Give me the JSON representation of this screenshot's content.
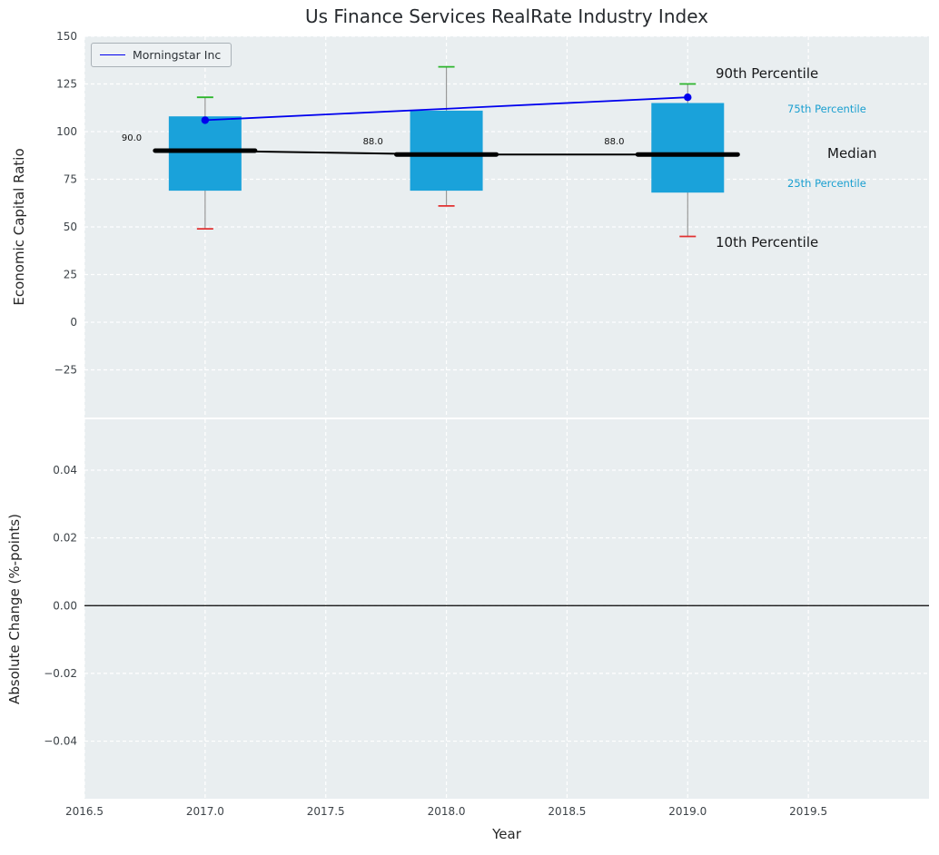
{
  "colors": {
    "box_fill": "#1aa2da",
    "median": "#000000",
    "whisker": "#999999",
    "cap_top": "#2cb52c",
    "cap_bottom": "#e23131",
    "company_line": "#0000ee",
    "percentile_label": "#1a9fd0",
    "plot_bg": "#e9eef0",
    "grid": "#ffffff",
    "tick_label": "#3d4348"
  },
  "chart_data": [
    {
      "type": "box",
      "panel": "top",
      "title": "Us Finance Services RealRate Industry Index",
      "ylabel": "Economic Capital Ratio",
      "xlim": [
        2016.5,
        2020.0
      ],
      "ylim": [
        -50,
        150
      ],
      "yticks": [
        150,
        125,
        100,
        75,
        50,
        25,
        0,
        -25
      ],
      "ytick_labels": [
        "150",
        "125",
        "100",
        "75",
        "50",
        "25",
        "0",
        "−25"
      ],
      "grid": true,
      "legend_position": "upper left",
      "categories": [
        2017,
        2018,
        2019
      ],
      "boxes": [
        {
          "x": 2017,
          "p10": 49,
          "p25": 69,
          "median": 90.0,
          "p75": 108,
          "p90": 118,
          "median_label": "90.0"
        },
        {
          "x": 2018,
          "p10": 61,
          "p25": 69,
          "median": 88.0,
          "p75": 111,
          "p90": 134,
          "median_label": "88.0"
        },
        {
          "x": 2019,
          "p10": 45,
          "p25": 68,
          "median": 88.0,
          "p75": 115,
          "p90": 125,
          "median_label": "88.0"
        }
      ],
      "median_line": {
        "x": [
          2017,
          2018,
          2019
        ],
        "values": [
          90.0,
          88.0,
          88.0
        ]
      },
      "series": [
        {
          "name": "Morningstar Inc",
          "x": [
            2017,
            2019
          ],
          "values": [
            106,
            118
          ],
          "color": "#0000ee"
        }
      ],
      "annotations": {
        "p90": "90th Percentile",
        "p75": "75th Percentile",
        "median": "Median",
        "p25": "25th Percentile",
        "p10": "10th Percentile"
      }
    },
    {
      "type": "line",
      "panel": "bottom",
      "ylabel": "Absolute Change (%-points)",
      "xlabel": "Year",
      "xlim": [
        2016.5,
        2020.0
      ],
      "ylim": [
        -0.057,
        0.055
      ],
      "yticks": [
        0.04,
        0.02,
        0.0,
        -0.02,
        -0.04
      ],
      "ytick_labels": [
        "0.04",
        "0.02",
        "0.00",
        "−0.02",
        "−0.04"
      ],
      "xticks": [
        2016.5,
        2017.0,
        2017.5,
        2018.0,
        2018.5,
        2019.0,
        2019.5
      ],
      "xtick_labels": [
        "2016.5",
        "2017.0",
        "2017.5",
        "2018.0",
        "2018.5",
        "2019.0",
        "2019.5"
      ],
      "grid": true,
      "zero_line": 0.0,
      "series": []
    }
  ]
}
